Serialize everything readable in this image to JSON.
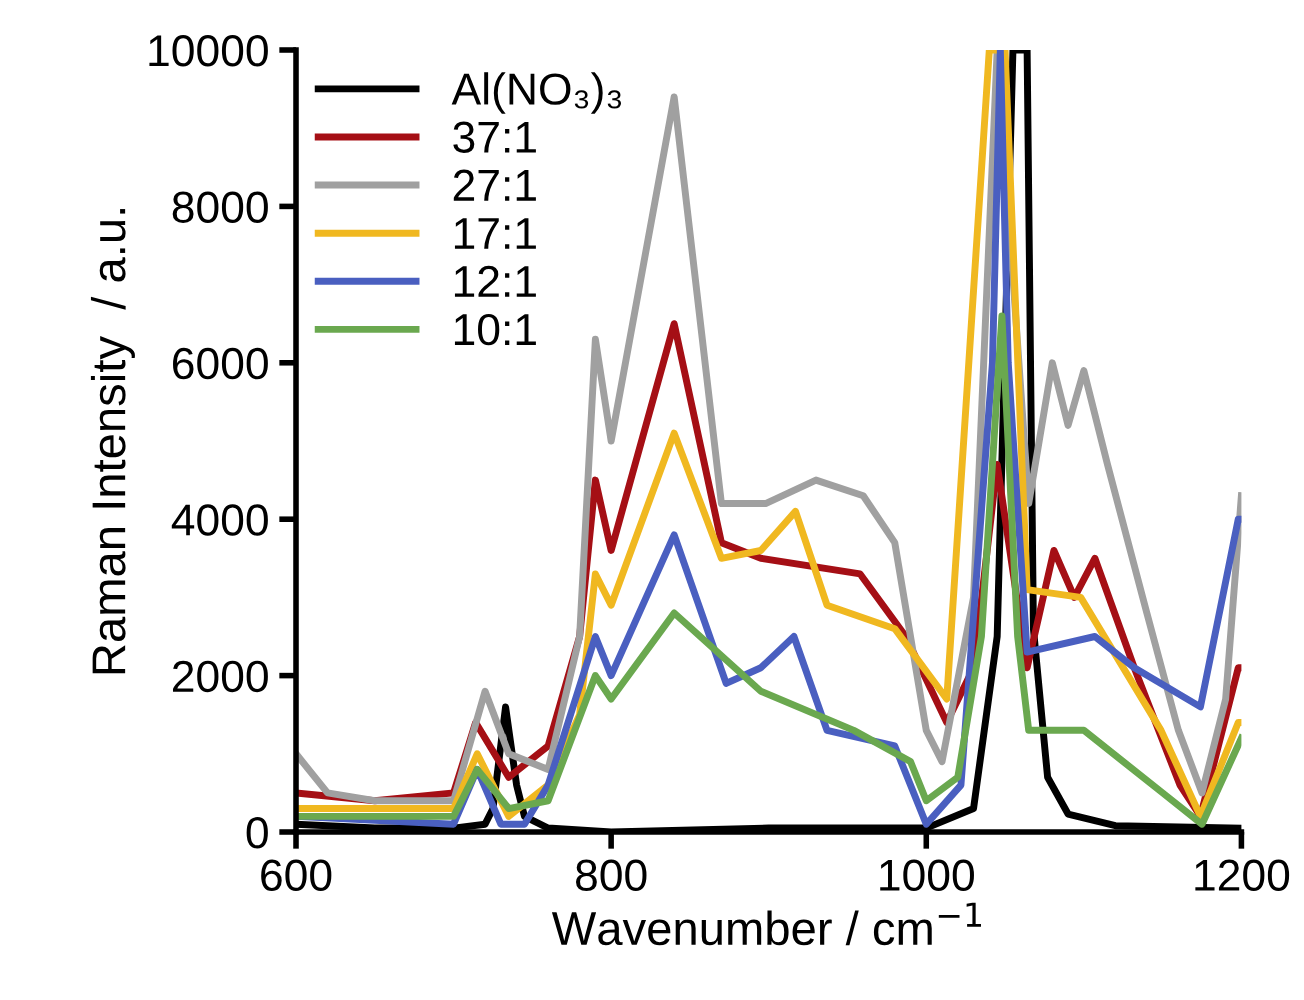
{
  "chart_data": {
    "type": "line",
    "xlabel": "Wavenumber / cm$^{−1}$",
    "ylabel": "Raman Intensity  / a.u.",
    "xlim": [
      600,
      1200
    ],
    "ylim": [
      0,
      10000
    ],
    "xticks": [
      600,
      800,
      1000,
      1200
    ],
    "yticks": [
      0,
      2000,
      4000,
      6000,
      8000,
      10000
    ],
    "grid": false,
    "legend": "top left",
    "line_style": "solid",
    "marker": "none",
    "series": [
      {
        "name": "Al(NO₃)₃",
        "color": "#000000",
        "x": [
          600,
          650,
          700,
          720,
          725,
          733,
          740,
          745,
          760,
          800,
          900,
          1000,
          1030,
          1045,
          1055,
          1060,
          1064,
          1068,
          1077,
          1090,
          1120,
          1200
        ],
        "values": [
          100,
          50,
          50,
          100,
          300,
          1600,
          600,
          200,
          50,
          0,
          50,
          50,
          300,
          2500,
          10000,
          10000,
          10000,
          2600,
          700,
          230,
          80,
          50
        ]
      },
      {
        "name": "37:1",
        "color": "#a50f15",
        "x": [
          600,
          650,
          700,
          714,
          735,
          760,
          780,
          790,
          800,
          840,
          870,
          895,
          958,
          987,
          1013,
          1030,
          1045,
          1064,
          1081,
          1094,
          1107,
          1132,
          1161,
          1174,
          1198,
          1200
        ],
        "values": [
          500,
          400,
          500,
          1400,
          700,
          1100,
          2500,
          4500,
          3600,
          6500,
          3700,
          3500,
          3300,
          2500,
          1400,
          2100,
          4700,
          2100,
          3600,
          3000,
          3500,
          2100,
          600,
          200,
          2100,
          2100
        ]
      },
      {
        "name": "27:1",
        "color": "#a0a0a0",
        "x": [
          600,
          620,
          650,
          700,
          720,
          735,
          760,
          780,
          790,
          800,
          840,
          870,
          898,
          930,
          960,
          980,
          1000,
          1010,
          1030,
          1045,
          1065,
          1080,
          1090,
          1100,
          1115,
          1140,
          1160,
          1175,
          1190,
          1200
        ],
        "values": [
          1000,
          500,
          400,
          400,
          1800,
          1000,
          800,
          2500,
          6300,
          5000,
          9400,
          4200,
          4200,
          4500,
          4300,
          3700,
          1300,
          900,
          3000,
          10000,
          4200,
          6000,
          5200,
          5900,
          4700,
          2800,
          1300,
          500,
          1700,
          4300
        ]
      },
      {
        "name": "17:1",
        "color": "#f0b820",
        "x": [
          600,
          700,
          715,
          735,
          760,
          780,
          790,
          800,
          840,
          870,
          895,
          917,
          937,
          980,
          1013,
          1040,
          1050,
          1064,
          1098,
          1149,
          1174,
          1198,
          1200
        ],
        "values": [
          300,
          300,
          1000,
          200,
          600,
          1500,
          3300,
          2900,
          5100,
          3500,
          3600,
          4100,
          2900,
          2600,
          1700,
          10000,
          10000,
          3100,
          3000,
          1300,
          200,
          1400,
          1400
        ]
      },
      {
        "name": "12:1",
        "color": "#4a5fc0",
        "x": [
          600,
          700,
          715,
          730,
          745,
          760,
          790,
          800,
          840,
          873,
          895,
          916,
          937,
          980,
          1000,
          1022,
          1042,
          1047,
          1052,
          1064,
          1107,
          1132,
          1174,
          1198,
          1200
        ],
        "values": [
          200,
          100,
          800,
          100,
          100,
          600,
          2500,
          2000,
          3800,
          1900,
          2100,
          2500,
          1300,
          1100,
          100,
          600,
          6000,
          10000,
          6000,
          2300,
          2500,
          2100,
          1600,
          4000,
          4000
        ]
      },
      {
        "name": "10:1",
        "color": "#6aa84f",
        "x": [
          600,
          700,
          715,
          735,
          760,
          790,
          800,
          840,
          895,
          954,
          990,
          1000,
          1020,
          1035,
          1048,
          1058,
          1065,
          1100,
          1150,
          1175,
          1200
        ],
        "values": [
          200,
          200,
          800,
          300,
          400,
          2000,
          1700,
          2800,
          1800,
          1300,
          900,
          400,
          700,
          2500,
          6600,
          2500,
          1300,
          1300,
          500,
          100,
          1200
        ]
      }
    ]
  }
}
